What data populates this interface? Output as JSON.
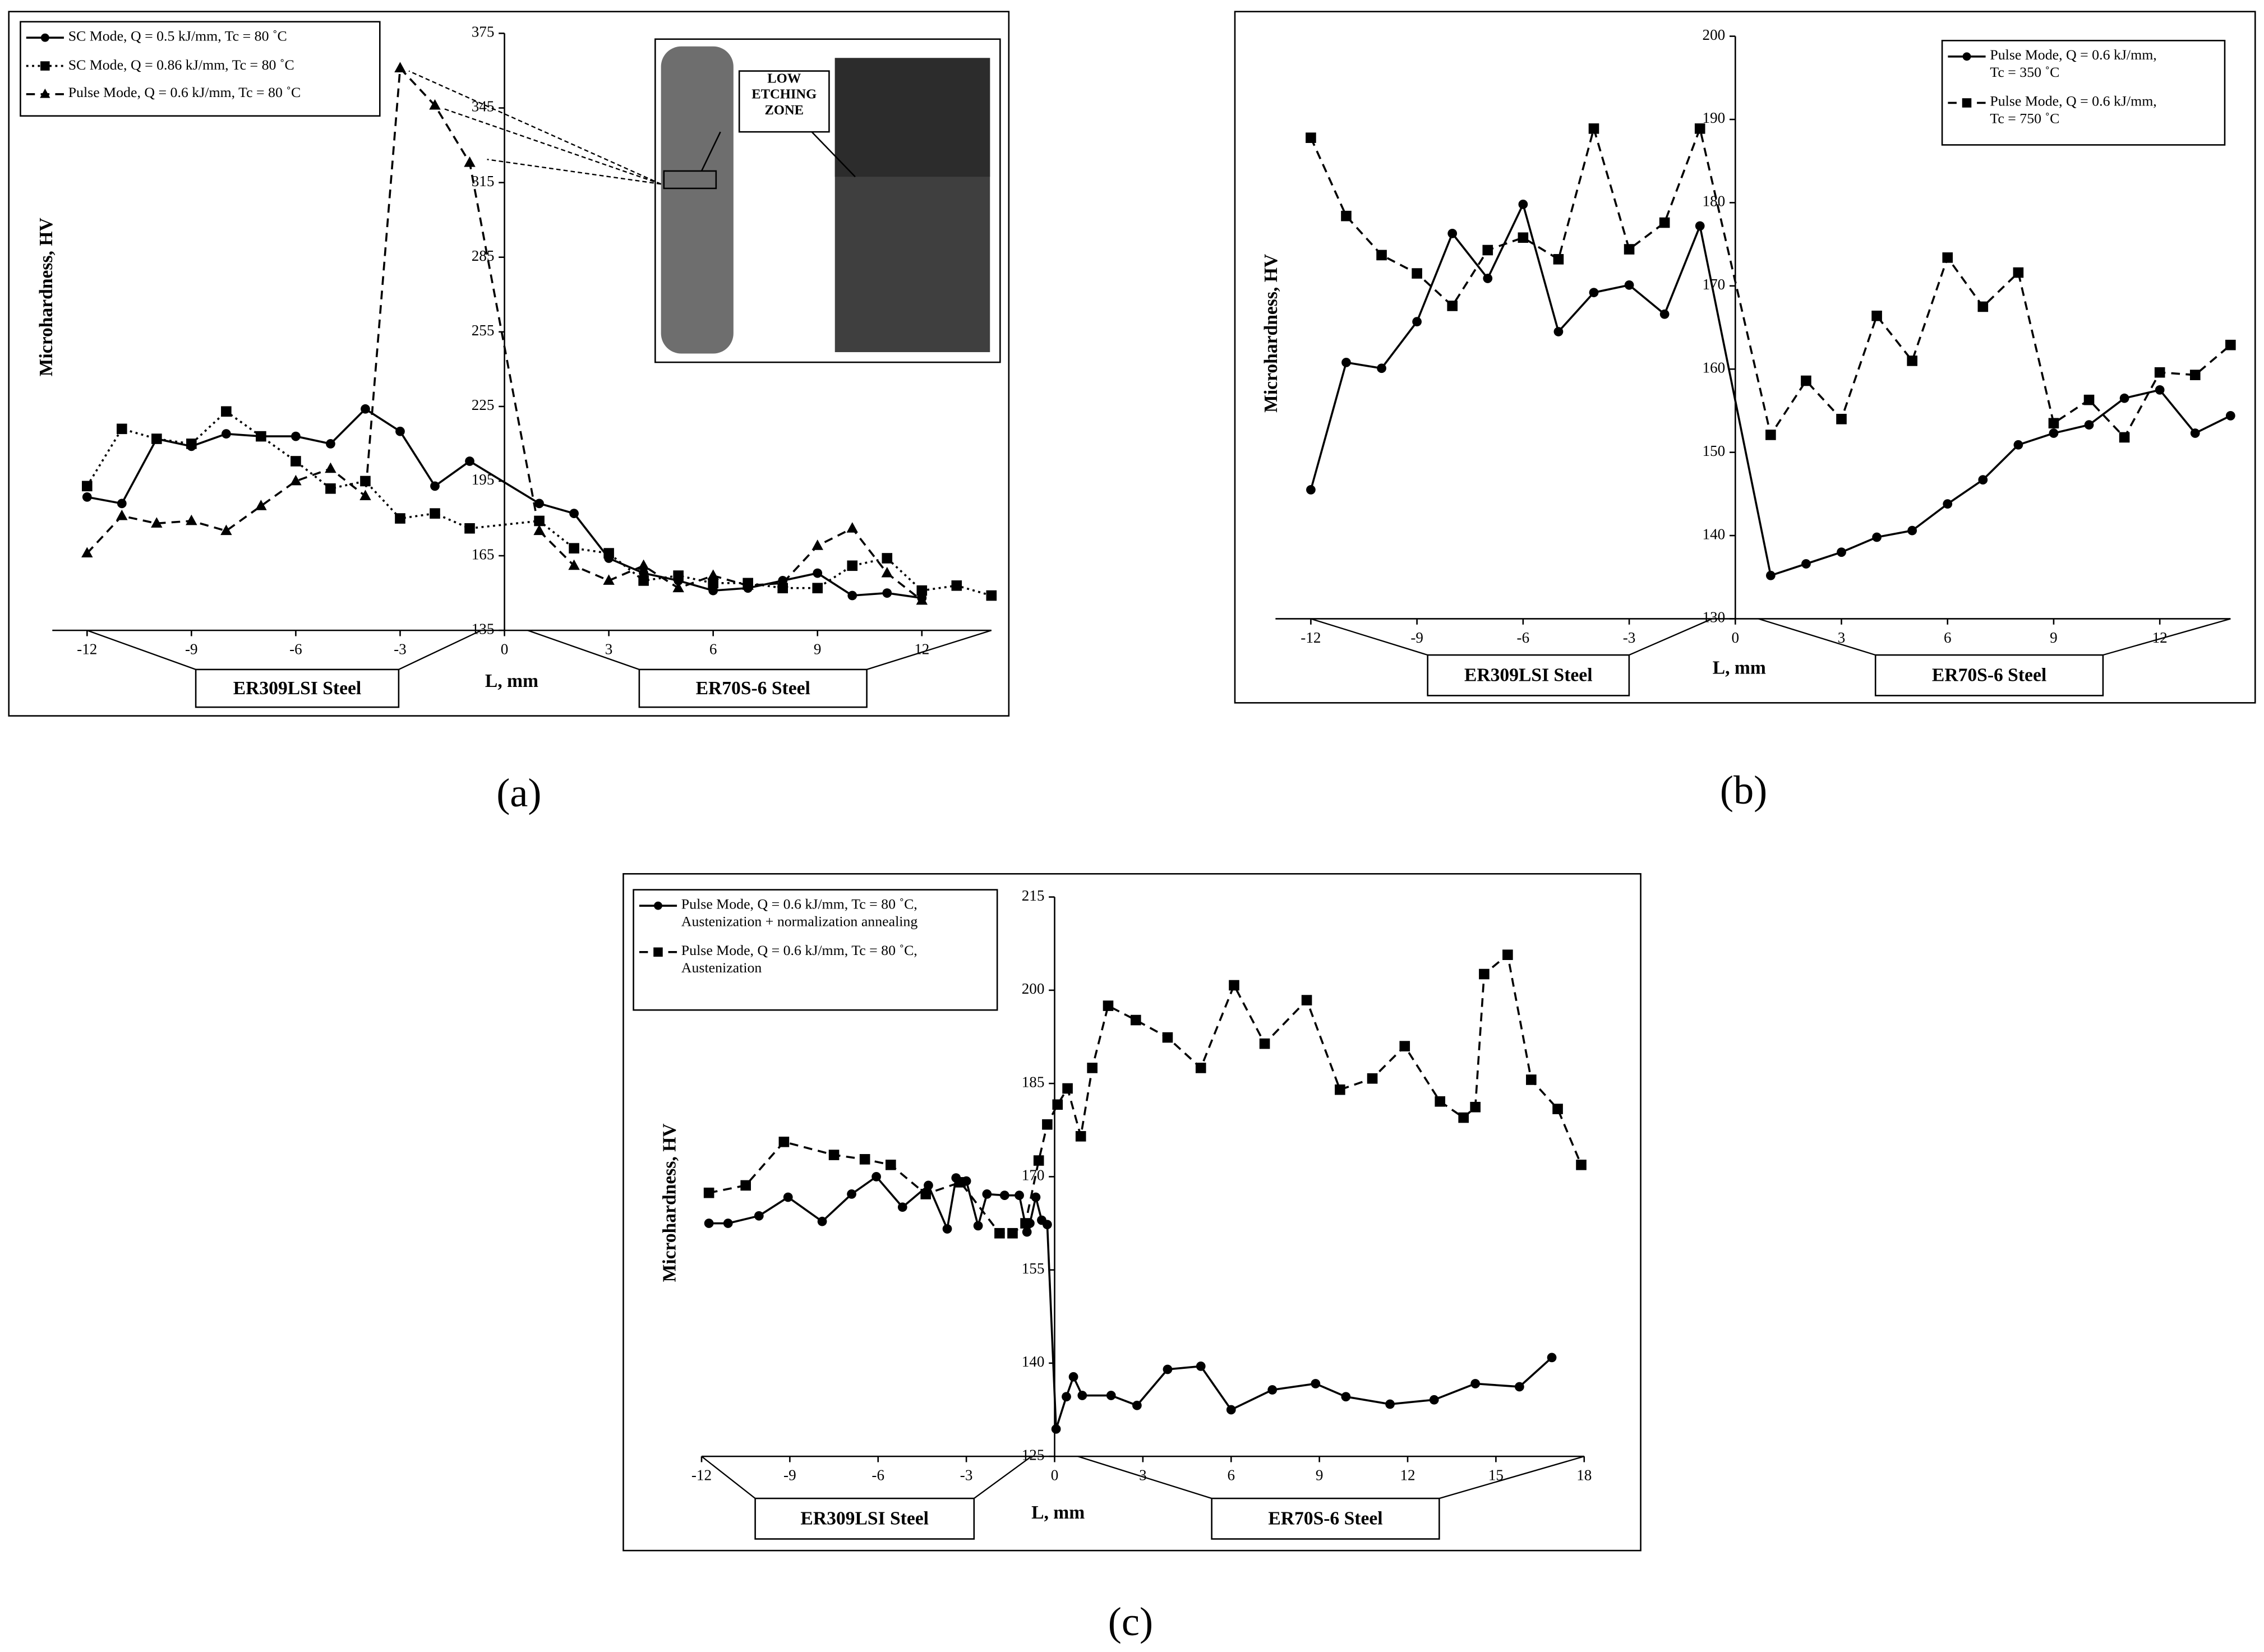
{
  "chart_data": [
    {
      "type": "line",
      "panel_label": "(a)",
      "x_label": "L, mm",
      "y_label": "Microhardness, HV",
      "region_labels": [
        "ER309LSI Steel",
        "ER70S-6 Steel"
      ],
      "inset_label": "LOW\nETCHING\nZONE",
      "xlim": [
        -13,
        14
      ],
      "xticks": [
        -12,
        -9,
        -6,
        -3,
        0,
        3,
        6,
        9,
        12
      ],
      "ylim": [
        135,
        375
      ],
      "yticks": [
        135,
        165,
        195,
        225,
        255,
        285,
        315,
        345,
        375
      ],
      "grid": false,
      "legend": "upper left",
      "series": [
        {
          "name": "SC Mode, Q = 0.5 kJ/mm,  Tc = 80 ˚C",
          "color": "#000000",
          "marker": "circle",
          "line_style": "solid",
          "x": [
            -12,
            -11,
            -10,
            -9,
            -8,
            -7,
            -6,
            -5,
            -4,
            -3,
            -2,
            -1,
            1,
            2,
            3,
            4,
            5,
            6,
            7,
            8,
            9,
            10,
            11,
            12
          ],
          "values": [
            188.6,
            186,
            212,
            209,
            214,
            213,
            213,
            210,
            224,
            215,
            193,
            203,
            186,
            182,
            164,
            158,
            155,
            151,
            152,
            155,
            158,
            149,
            150,
            148
          ]
        },
        {
          "name": "SC Mode, Q = 0.86 kJ/mm,  Tc = 80 ˚C",
          "color": "#000000",
          "marker": "square",
          "line_style": "dotted",
          "x": [
            -12,
            -11,
            -10,
            -9,
            -8,
            -7,
            -6,
            -5,
            -4,
            -3,
            -2,
            -1,
            1,
            2,
            3,
            4,
            5,
            6,
            7,
            8,
            9,
            10,
            11,
            12,
            13,
            14
          ],
          "values": [
            193,
            216,
            212,
            210,
            223,
            213,
            203,
            192,
            195,
            180,
            182,
            176,
            179,
            168,
            166,
            155,
            157,
            154,
            154,
            152,
            152,
            161,
            164,
            151,
            153,
            149
          ]
        },
        {
          "name": "Pulse Mode, Q = 0.6 kJ/mm, Tc = 80 ˚C",
          "color": "#000000",
          "marker": "triangle",
          "line_style": "dashed",
          "x": [
            -12,
            -11,
            -10,
            -9,
            -8,
            -7,
            -6,
            -5,
            -4,
            -3,
            -2,
            -1,
            1,
            2,
            3,
            4,
            5,
            6,
            7,
            8,
            9,
            10,
            11,
            12
          ],
          "values": [
            166,
            181,
            178,
            179,
            175,
            185,
            195,
            200,
            189,
            361,
            346,
            323,
            175,
            161,
            155,
            161,
            152,
            157,
            153,
            154,
            169,
            176,
            158,
            147
          ]
        }
      ]
    },
    {
      "type": "line",
      "panel_label": "(b)",
      "x_label": "L, mm",
      "y_label": "Microhardness, HV",
      "region_labels": [
        "ER309LSI Steel",
        "ER70S-6 Steel"
      ],
      "xlim": [
        -13,
        14
      ],
      "xticks": [
        -12,
        -9,
        -6,
        -3,
        0,
        3,
        6,
        9,
        12
      ],
      "ylim": [
        130,
        200
      ],
      "yticks": [
        130,
        140,
        150,
        160,
        170,
        180,
        190,
        200
      ],
      "grid": false,
      "legend": "upper right",
      "series": [
        {
          "name": "Pulse Mode,  Q = 0.6 kJ/mm,\nTc = 350 ˚C",
          "color": "#000000",
          "marker": "circle",
          "line_style": "solid",
          "x": [
            -12,
            -11,
            -10,
            -9,
            -8,
            -7,
            -6,
            -5,
            -4,
            -3,
            -2,
            -1,
            1,
            2,
            3,
            4,
            5,
            6,
            7,
            8,
            9,
            10,
            11,
            12,
            13,
            14
          ],
          "values": [
            145.5,
            160.8,
            160.1,
            165.7,
            176.3,
            170.9,
            179.8,
            164.5,
            169.2,
            170.1,
            166.6,
            177.2,
            135.2,
            136.6,
            138,
            139.8,
            140.6,
            143.8,
            146.7,
            150.9,
            152.3,
            153.3,
            156.5,
            157.5,
            152.3,
            154.4
          ]
        },
        {
          "name": "Pulse Mode,  Q = 0.6 kJ/mm,\nTc = 750 ˚C",
          "color": "#000000",
          "marker": "square",
          "line_style": "dashed",
          "x": [
            -12,
            -11,
            -10,
            -9,
            -8,
            -7,
            -6,
            -5,
            -4,
            -3,
            -2,
            -1,
            1,
            2,
            3,
            4,
            5,
            6,
            7,
            8,
            9,
            10,
            11,
            12,
            13,
            14
          ],
          "values": [
            187.8,
            178.4,
            173.7,
            171.5,
            167.6,
            174.3,
            175.8,
            173.2,
            188.9,
            174.4,
            177.6,
            188.9,
            152.1,
            158.6,
            154,
            166.4,
            161,
            173.4,
            167.5,
            171.6,
            153.5,
            156.3,
            151.8,
            159.6,
            159.3,
            162.9
          ]
        }
      ]
    },
    {
      "type": "line",
      "panel_label": "(c)",
      "x_label": "L, mm",
      "y_label": "Microhardness, HV",
      "region_labels": [
        "ER309LSI Steel",
        "ER70S-6 Steel"
      ],
      "xlim": [
        -12,
        18
      ],
      "xticks": [
        -12,
        -9,
        -6,
        -3,
        0,
        3,
        6,
        9,
        12,
        15,
        18
      ],
      "ylim": [
        125,
        215
      ],
      "yticks": [
        125,
        140,
        155,
        170,
        185,
        200,
        215
      ],
      "grid": false,
      "legend": "upper left",
      "series": [
        {
          "name": "Pulse Mode,  Q = 0.6 kJ/mm,  Tc = 80 ˚C,\nAustenization + normalization  annealing",
          "color": "#000000",
          "marker": "circle",
          "line_style": "solid",
          "x": [
            -11.75,
            -11.1,
            -10.05,
            -9.06,
            -7.9,
            -6.9,
            -6.06,
            -5.17,
            -4.29,
            -3.65,
            -3.35,
            -3,
            -2.6,
            -2.3,
            -1.7,
            -1.2,
            -0.94,
            -0.84,
            -0.64,
            -0.44,
            -0.25,
            0.05,
            0.4,
            0.64,
            0.94,
            1.92,
            2.8,
            3.84,
            4.97,
            6,
            7.4,
            8.87,
            9.9,
            11.4,
            12.9,
            14.3,
            15.8,
            16.9
          ],
          "values": [
            162.5,
            162.5,
            163.7,
            166.7,
            162.8,
            167.2,
            170,
            165.1,
            168.6,
            161.6,
            169.8,
            169.3,
            162.1,
            167.2,
            167,
            167,
            161.1,
            162.5,
            166.7,
            163,
            162.3,
            129.4,
            134.6,
            137.8,
            134.8,
            134.8,
            133.2,
            139,
            139.5,
            132.5,
            135.7,
            136.7,
            134.6,
            133.4,
            134.1,
            136.7,
            136.2,
            140.9
          ]
        },
        {
          "name": "Pulse Mode,  Q = 0.6 kJ/mm,  Tc = 80 ˚C,\nAustenization",
          "color": "#000000",
          "marker": "square",
          "line_style": "dashed",
          "x": [
            -11.75,
            -10.5,
            -9.2,
            -7.5,
            -6.45,
            -5.57,
            -4.38,
            -3.2,
            -1.87,
            -1.43,
            -0.99,
            -0.54,
            -0.25,
            0.1,
            0.44,
            0.89,
            1.28,
            1.82,
            2.76,
            3.84,
            4.97,
            6.1,
            7.14,
            8.57,
            9.7,
            10.8,
            11.9,
            13.1,
            13.9,
            14.3,
            14.6,
            15.4,
            16.2,
            17.1,
            17.9
          ],
          "values": [
            167.4,
            168.6,
            175.6,
            173.5,
            172.8,
            171.9,
            167.2,
            169.1,
            160.9,
            160.9,
            162.5,
            172.6,
            178.4,
            181.6,
            184.2,
            176.5,
            187.5,
            197.5,
            195.2,
            192.4,
            187.5,
            200.8,
            191.4,
            198.4,
            184,
            185.8,
            191,
            182.1,
            179.5,
            181.2,
            202.6,
            205.7,
            185.6,
            180.9,
            171.9
          ]
        }
      ]
    }
  ]
}
